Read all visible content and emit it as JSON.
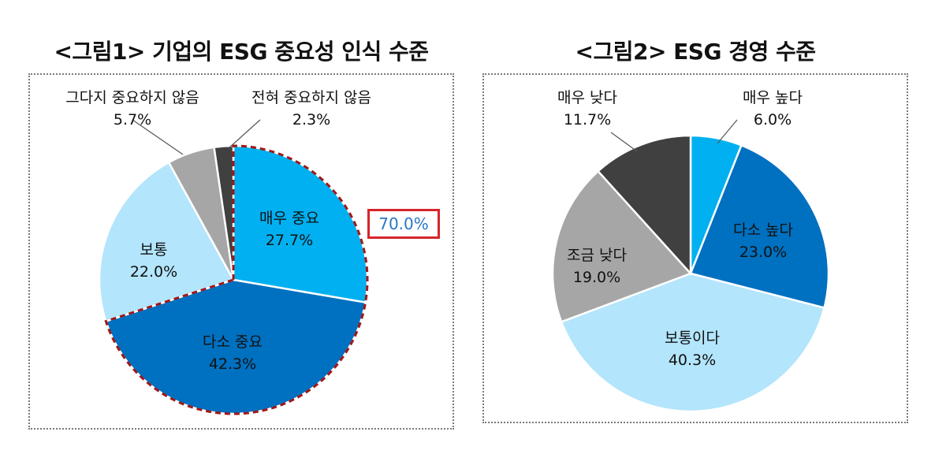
{
  "chart_data": [
    {
      "type": "pie",
      "title": "<그림1> 기업의 ESG 중요성 인식 수준",
      "slices": [
        {
          "name": "매우 중요",
          "value": 27.7,
          "label": "27.7%",
          "color": "#00b0f0"
        },
        {
          "name": "다소 중요",
          "value": 42.3,
          "label": "42.3%",
          "color": "#0070c0"
        },
        {
          "name": "보통",
          "value": 22.0,
          "label": "22.0%",
          "color": "#b3e5fc"
        },
        {
          "name": "그다지 중요하지 않음",
          "value": 5.7,
          "label": "5.7%",
          "color": "#a6a6a6"
        },
        {
          "name": "전혀 중요하지 않음",
          "value": 2.3,
          "label": "2.3%",
          "color": "#404040"
        }
      ],
      "callout": {
        "text": "70.0%",
        "text_color": "#2a78c4",
        "border_color": "#d6252a",
        "covers": [
          "매우 중요",
          "다소 중요"
        ]
      }
    },
    {
      "type": "pie",
      "title": "<그림2> ESG 경영 수준",
      "slices": [
        {
          "name": "매우 높다",
          "value": 6.0,
          "label": "6.0%",
          "color": "#00b0f0"
        },
        {
          "name": "다소 높다",
          "value": 23.0,
          "label": "23.0%",
          "color": "#0070c0"
        },
        {
          "name": "보통이다",
          "value": 40.3,
          "label": "40.3%",
          "color": "#b3e5fc"
        },
        {
          "name": "조금 낮다",
          "value": 19.0,
          "label": "19.0%",
          "color": "#a6a6a6"
        },
        {
          "name": "매우 낮다",
          "value": 11.7,
          "label": "11.7%",
          "color": "#404040"
        }
      ]
    }
  ]
}
